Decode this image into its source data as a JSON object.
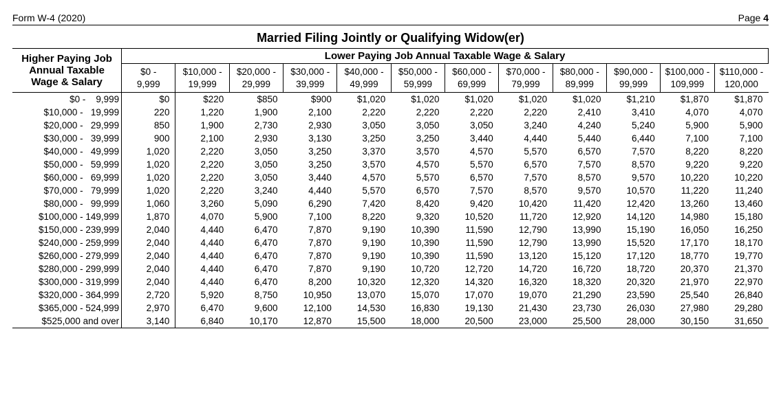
{
  "header": {
    "form_id": "Form W-4 (2020)",
    "page_word": "Page",
    "page_num": "4"
  },
  "title": "Married Filing Jointly or Qualifying Widow(er)",
  "row_group_title": "Higher Paying Job Annual Taxable Wage & Salary",
  "col_group_title": "Lower Paying Job Annual Taxable Wage & Salary",
  "columns": [
    {
      "top": "$0 -",
      "bottom": "9,999"
    },
    {
      "top": "$10,000 -",
      "bottom": "19,999"
    },
    {
      "top": "$20,000 -",
      "bottom": "29,999"
    },
    {
      "top": "$30,000 -",
      "bottom": "39,999"
    },
    {
      "top": "$40,000 -",
      "bottom": "49,999"
    },
    {
      "top": "$50,000 -",
      "bottom": "59,999"
    },
    {
      "top": "$60,000 -",
      "bottom": "69,999"
    },
    {
      "top": "$70,000 -",
      "bottom": "79,999"
    },
    {
      "top": "$80,000 -",
      "bottom": "89,999"
    },
    {
      "top": "$90,000 -",
      "bottom": "99,999"
    },
    {
      "top": "$100,000 -",
      "bottom": "109,999"
    },
    {
      "top": "$110,000 -",
      "bottom": "120,000"
    }
  ],
  "rows": [
    {
      "label": "$0 -    9,999",
      "cells": [
        "$0",
        "$220",
        "$850",
        "$900",
        "$1,020",
        "$1,020",
        "$1,020",
        "$1,020",
        "$1,020",
        "$1,210",
        "$1,870",
        "$1,870"
      ]
    },
    {
      "label": "$10,000 -   19,999",
      "cells": [
        "220",
        "1,220",
        "1,900",
        "2,100",
        "2,220",
        "2,220",
        "2,220",
        "2,220",
        "2,410",
        "3,410",
        "4,070",
        "4,070"
      ]
    },
    {
      "label": "$20,000 -   29,999",
      "cells": [
        "850",
        "1,900",
        "2,730",
        "2,930",
        "3,050",
        "3,050",
        "3,050",
        "3,240",
        "4,240",
        "5,240",
        "5,900",
        "5,900"
      ]
    },
    {
      "label": "$30,000 -   39,999",
      "cells": [
        "900",
        "2,100",
        "2,930",
        "3,130",
        "3,250",
        "3,250",
        "3,440",
        "4,440",
        "5,440",
        "6,440",
        "7,100",
        "7,100"
      ]
    },
    {
      "label": "$40,000 -   49,999",
      "cells": [
        "1,020",
        "2,220",
        "3,050",
        "3,250",
        "3,370",
        "3,570",
        "4,570",
        "5,570",
        "6,570",
        "7,570",
        "8,220",
        "8,220"
      ]
    },
    {
      "label": "$50,000 -   59,999",
      "cells": [
        "1,020",
        "2,220",
        "3,050",
        "3,250",
        "3,570",
        "4,570",
        "5,570",
        "6,570",
        "7,570",
        "8,570",
        "9,220",
        "9,220"
      ]
    },
    {
      "label": "$60,000 -   69,999",
      "cells": [
        "1,020",
        "2,220",
        "3,050",
        "3,440",
        "4,570",
        "5,570",
        "6,570",
        "7,570",
        "8,570",
        "9,570",
        "10,220",
        "10,220"
      ]
    },
    {
      "label": "$70,000 -   79,999",
      "cells": [
        "1,020",
        "2,220",
        "3,240",
        "4,440",
        "5,570",
        "6,570",
        "7,570",
        "8,570",
        "9,570",
        "10,570",
        "11,220",
        "11,240"
      ]
    },
    {
      "label": "$80,000 -   99,999",
      "cells": [
        "1,060",
        "3,260",
        "5,090",
        "6,290",
        "7,420",
        "8,420",
        "9,420",
        "10,420",
        "11,420",
        "12,420",
        "13,260",
        "13,460"
      ]
    },
    {
      "label": "$100,000 - 149,999",
      "cells": [
        "1,870",
        "4,070",
        "5,900",
        "7,100",
        "8,220",
        "9,320",
        "10,520",
        "11,720",
        "12,920",
        "14,120",
        "14,980",
        "15,180"
      ]
    },
    {
      "label": "$150,000 - 239,999",
      "cells": [
        "2,040",
        "4,440",
        "6,470",
        "7,870",
        "9,190",
        "10,390",
        "11,590",
        "12,790",
        "13,990",
        "15,190",
        "16,050",
        "16,250"
      ]
    },
    {
      "label": "$240,000 - 259,999",
      "cells": [
        "2,040",
        "4,440",
        "6,470",
        "7,870",
        "9,190",
        "10,390",
        "11,590",
        "12,790",
        "13,990",
        "15,520",
        "17,170",
        "18,170"
      ]
    },
    {
      "label": "$260,000 - 279,999",
      "cells": [
        "2,040",
        "4,440",
        "6,470",
        "7,870",
        "9,190",
        "10,390",
        "11,590",
        "13,120",
        "15,120",
        "17,120",
        "18,770",
        "19,770"
      ]
    },
    {
      "label": "$280,000 - 299,999",
      "cells": [
        "2,040",
        "4,440",
        "6,470",
        "7,870",
        "9,190",
        "10,720",
        "12,720",
        "14,720",
        "16,720",
        "18,720",
        "20,370",
        "21,370"
      ]
    },
    {
      "label": "$300,000 - 319,999",
      "cells": [
        "2,040",
        "4,440",
        "6,470",
        "8,200",
        "10,320",
        "12,320",
        "14,320",
        "16,320",
        "18,320",
        "20,320",
        "21,970",
        "22,970"
      ]
    },
    {
      "label": "$320,000 - 364,999",
      "cells": [
        "2,720",
        "5,920",
        "8,750",
        "10,950",
        "13,070",
        "15,070",
        "17,070",
        "19,070",
        "21,290",
        "23,590",
        "25,540",
        "26,840"
      ]
    },
    {
      "label": "$365,000 - 524,999",
      "cells": [
        "2,970",
        "6,470",
        "9,600",
        "12,100",
        "14,530",
        "16,830",
        "19,130",
        "21,430",
        "23,730",
        "26,030",
        "27,980",
        "29,280"
      ]
    },
    {
      "label": "$525,000 and over",
      "cells": [
        "3,140",
        "6,840",
        "10,170",
        "12,870",
        "15,500",
        "18,000",
        "20,500",
        "23,000",
        "25,500",
        "28,000",
        "30,150",
        "31,650"
      ]
    }
  ]
}
